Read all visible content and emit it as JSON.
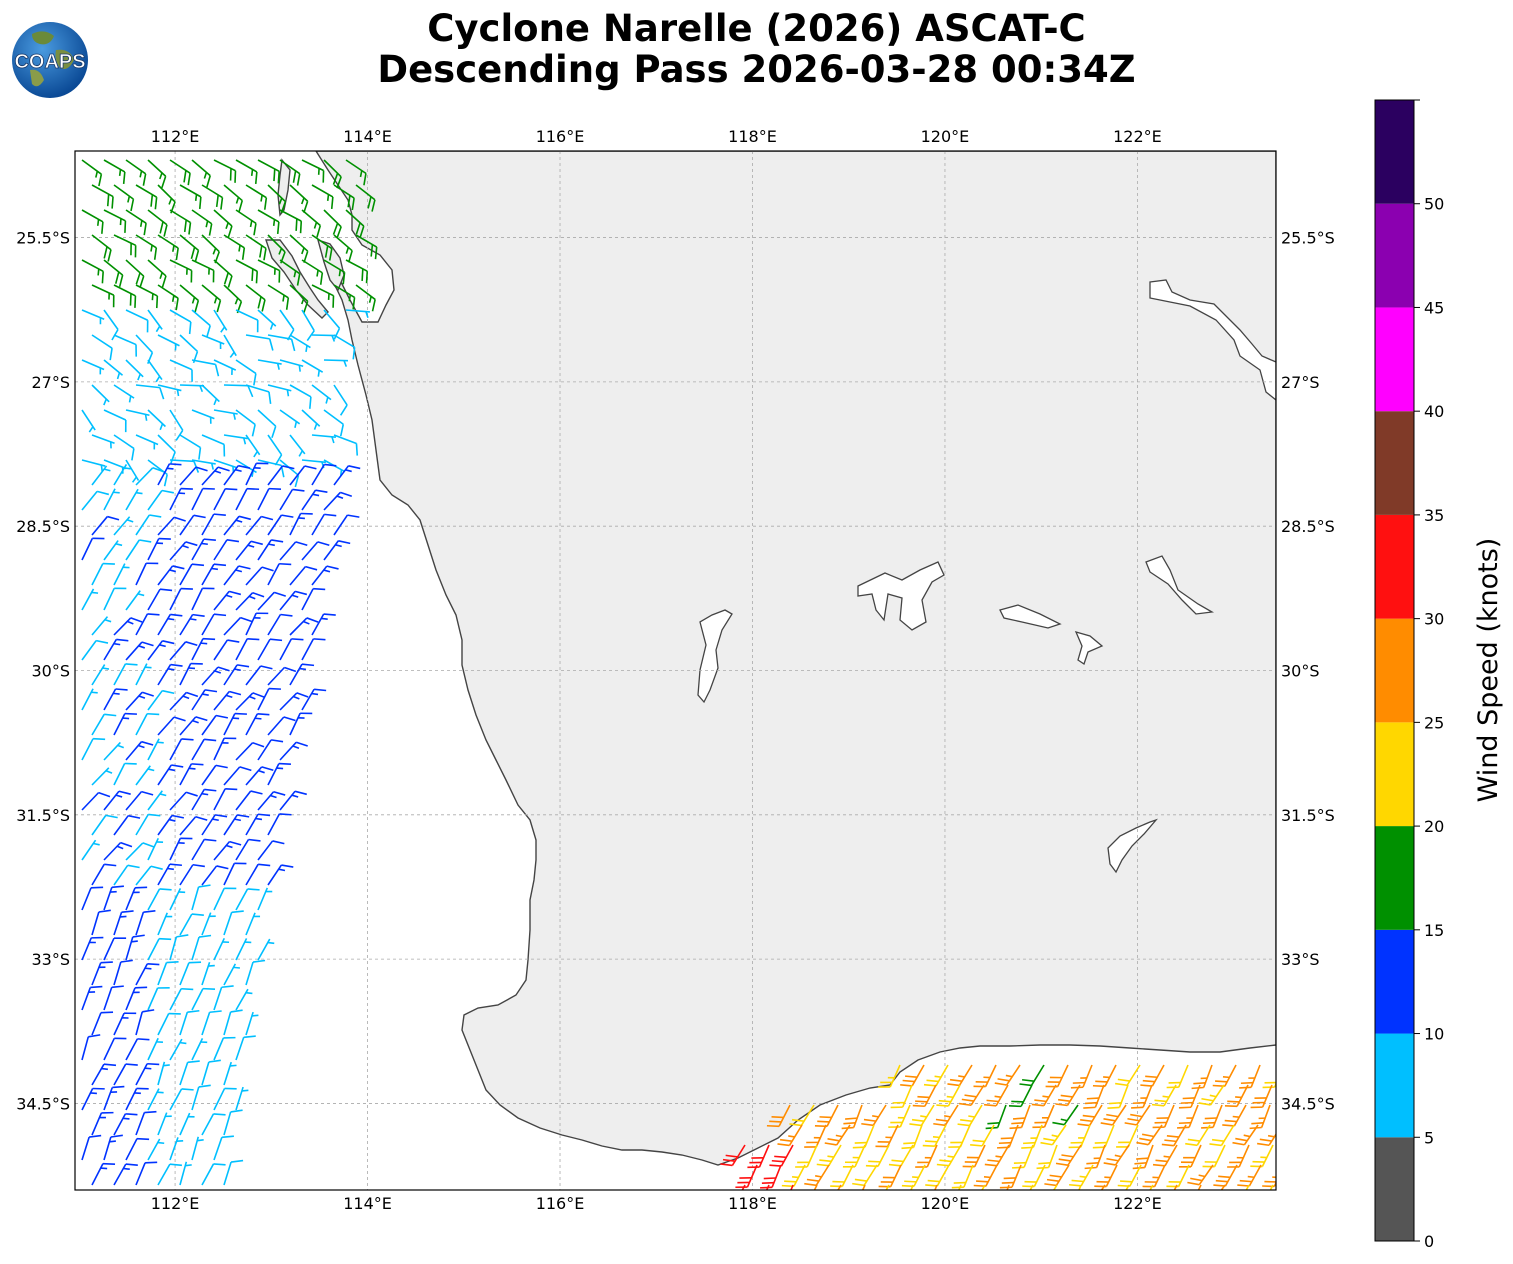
{
  "title_line1": "Cyclone Narelle (2026) ASCAT-C",
  "title_line2": "Descending Pass 2026-03-28 00:34Z",
  "logo_text": "COAPS",
  "map": {
    "lon_ticks": [
      "112°E",
      "114°E",
      "116°E",
      "118°E",
      "120°E",
      "122°E"
    ],
    "lon_values": [
      112,
      114,
      116,
      118,
      120,
      122
    ],
    "lat_ticks": [
      "25.5°S",
      "27°S",
      "28.5°S",
      "30°S",
      "31.5°S",
      "33°S",
      "34.5°S"
    ],
    "lat_values": [
      -25.5,
      -27,
      -28.5,
      -30,
      -31.5,
      -33,
      -34.5
    ],
    "lon_range": [
      110.96,
      123.44
    ],
    "lat_range": [
      -24.6,
      -35.4
    ],
    "land_color": "#eeeeee",
    "coast_color": "#444444"
  },
  "colorbar": {
    "label": "Wind Speed (knots)",
    "ticks": [
      "0",
      "5",
      "10",
      "15",
      "20",
      "25",
      "30",
      "35",
      "40",
      "45",
      "50"
    ],
    "bins": [
      {
        "min": 0,
        "max": 5,
        "color": "#555555"
      },
      {
        "min": 5,
        "max": 10,
        "color": "#00bfff"
      },
      {
        "min": 10,
        "max": 15,
        "color": "#0033ff"
      },
      {
        "min": 15,
        "max": 20,
        "color": "#009000"
      },
      {
        "min": 20,
        "max": 25,
        "color": "#ffd700"
      },
      {
        "min": 25,
        "max": 30,
        "color": "#ff8c00"
      },
      {
        "min": 30,
        "max": 35,
        "color": "#ff1010"
      },
      {
        "min": 35,
        "max": 40,
        "color": "#803a28"
      },
      {
        "min": 40,
        "max": 45,
        "color": "#ff00ff"
      },
      {
        "min": 45,
        "max": 50,
        "color": "#8b00b0"
      },
      {
        "min": 50,
        "max": 55,
        "color": "#2b0060"
      }
    ]
  }
}
